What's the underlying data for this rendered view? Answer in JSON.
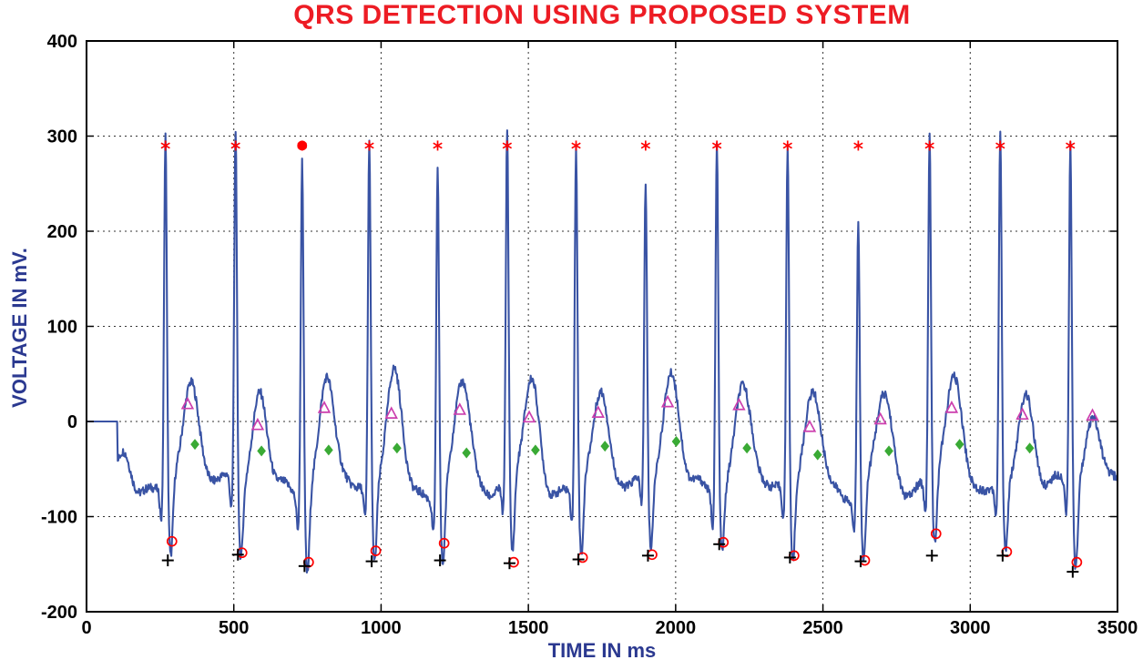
{
  "chart_data": {
    "type": "line",
    "title": "QRS DETECTION USING PROPOSED SYSTEM",
    "xlabel": "TIME IN ms",
    "ylabel": "VOLTAGE IN mV.",
    "xlim": [
      0,
      3500
    ],
    "ylim": [
      -200,
      400
    ],
    "xticks": [
      0,
      500,
      1000,
      1500,
      2000,
      2500,
      3000,
      3500
    ],
    "yticks": [
      -200,
      -100,
      0,
      100,
      200,
      300,
      400
    ],
    "grid": "dashed",
    "legend": "none",
    "colors": {
      "title": "#ed1c24",
      "axis_label": "#2b3990",
      "tick_label": "#000000",
      "grid": "#333333",
      "border": "#000000",
      "ecg_line": "#3953a4",
      "r_marker": "#ff0000",
      "t_marker": "#cc3fae",
      "p_marker": "#3aaa35",
      "s_marker": "#ff0000",
      "q_marker": "#000000"
    },
    "ecg": {
      "baseline_mv": -70,
      "flat_until_ms": 105,
      "flat_level_mv": 0,
      "noise_mv": 9,
      "beats": [
        {
          "r": 268,
          "r_amp": 305,
          "p_amp": -26,
          "s_amp": -150,
          "t_amp": 18
        },
        {
          "r": 506,
          "r_amp": 308,
          "p_amp": -24,
          "s_amp": -145,
          "t_amp": -4
        },
        {
          "r": 732,
          "r_amp": 293,
          "p_amp": -31,
          "s_amp": -155,
          "t_amp": 14
        },
        {
          "r": 960,
          "r_amp": 298,
          "p_amp": -30,
          "s_amp": -150,
          "t_amp": 8
        },
        {
          "r": 1192,
          "r_amp": 282,
          "p_amp": -28,
          "s_amp": -148,
          "t_amp": 12
        },
        {
          "r": 1428,
          "r_amp": 303,
          "p_amp": -33,
          "s_amp": -152,
          "t_amp": 4
        },
        {
          "r": 1662,
          "r_amp": 291,
          "p_amp": -30,
          "s_amp": -148,
          "t_amp": 9
        },
        {
          "r": 1898,
          "r_amp": 240,
          "p_amp": -26,
          "s_amp": -144,
          "t_amp": 20
        },
        {
          "r": 2140,
          "r_amp": 306,
          "p_amp": -21,
          "s_amp": -132,
          "t_amp": 17
        },
        {
          "r": 2380,
          "r_amp": 297,
          "p_amp": -28,
          "s_amp": -146,
          "t_amp": -6
        },
        {
          "r": 2620,
          "r_amp": 225,
          "p_amp": -35,
          "s_amp": -150,
          "t_amp": 2
        },
        {
          "r": 2862,
          "r_amp": 298,
          "p_amp": -31,
          "s_amp": -143,
          "t_amp": 14
        },
        {
          "r": 3102,
          "r_amp": 307,
          "p_amp": -24,
          "s_amp": -144,
          "t_amp": 7
        },
        {
          "r": 3340,
          "r_amp": 293,
          "p_amp": -28,
          "s_amp": -160,
          "t_amp": 6
        }
      ]
    },
    "series": [
      {
        "name": "R-peak detections",
        "symbol": "asterisk",
        "color": "#ff0000",
        "points": [
          [
            268,
            290
          ],
          [
            506,
            290
          ],
          [
            732,
            290
          ],
          [
            960,
            290
          ],
          [
            1192,
            290
          ],
          [
            1428,
            290
          ],
          [
            1662,
            290
          ],
          [
            1898,
            290
          ],
          [
            2140,
            290
          ],
          [
            2380,
            290
          ],
          [
            2620,
            290
          ],
          [
            2862,
            290
          ],
          [
            3102,
            290
          ],
          [
            3340,
            290
          ]
        ]
      },
      {
        "name": "R-peak highlighted detection",
        "symbol": "dot",
        "color": "#ff0000",
        "points": [
          [
            732,
            290
          ]
        ]
      },
      {
        "name": "T-wave detections",
        "symbol": "triangle",
        "color": "#cc3fae",
        "points": [
          [
            343,
            18
          ],
          [
            581,
            -4
          ],
          [
            807,
            14
          ],
          [
            1035,
            8
          ],
          [
            1267,
            12
          ],
          [
            1503,
            4
          ],
          [
            1737,
            9
          ],
          [
            1973,
            20
          ],
          [
            2215,
            17
          ],
          [
            2455,
            -6
          ],
          [
            2695,
            2
          ],
          [
            2937,
            14
          ],
          [
            3177,
            7
          ],
          [
            3415,
            6
          ]
        ]
      },
      {
        "name": "P-wave detections",
        "symbol": "diamond",
        "color": "#3aaa35",
        "points": [
          [
            368,
            -24
          ],
          [
            594,
            -31
          ],
          [
            822,
            -30
          ],
          [
            1054,
            -28
          ],
          [
            1290,
            -33
          ],
          [
            1524,
            -30
          ],
          [
            1760,
            -26
          ],
          [
            2002,
            -21
          ],
          [
            2242,
            -28
          ],
          [
            2482,
            -35
          ],
          [
            2724,
            -31
          ],
          [
            2964,
            -24
          ],
          [
            3202,
            -28
          ]
        ]
      },
      {
        "name": "S-point detections",
        "symbol": "circle",
        "color": "#ff0000",
        "points": [
          [
            290,
            -126
          ],
          [
            528,
            -138
          ],
          [
            754,
            -148
          ],
          [
            982,
            -136
          ],
          [
            1214,
            -128
          ],
          [
            1450,
            -148
          ],
          [
            1684,
            -143
          ],
          [
            1920,
            -140
          ],
          [
            2162,
            -127
          ],
          [
            2402,
            -141
          ],
          [
            2642,
            -146
          ],
          [
            2884,
            -118
          ],
          [
            3124,
            -137
          ],
          [
            3362,
            -148
          ]
        ]
      },
      {
        "name": "Q-point detections",
        "symbol": "plus",
        "color": "#000000",
        "points": [
          [
            276,
            -146
          ],
          [
            514,
            -140
          ],
          [
            740,
            -152
          ],
          [
            968,
            -147
          ],
          [
            1200,
            -146
          ],
          [
            1436,
            -149
          ],
          [
            1670,
            -145
          ],
          [
            1906,
            -141
          ],
          [
            2148,
            -129
          ],
          [
            2388,
            -143
          ],
          [
            2628,
            -147
          ],
          [
            2870,
            -141
          ],
          [
            3110,
            -141
          ],
          [
            3348,
            -158
          ]
        ]
      }
    ]
  }
}
